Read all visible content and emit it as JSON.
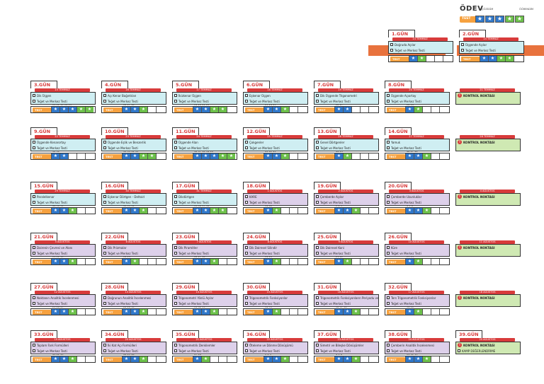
{
  "legend": {
    "title": "ÖDEV",
    "caption1": "ÇÖZDÜM",
    "caption2": "ÖĞRENDİM",
    "test": "TEST"
  },
  "test_label": "TEST",
  "colors": {
    "red": "#d83b3b",
    "orange": "#f6a13f",
    "blue": "#2f77c9",
    "green": "#6cc04a",
    "cyan": "#cfeef2",
    "purple": "#ddd0ea",
    "lime": "#cfe9b3"
  },
  "days": [
    {
      "day": "1.GÜN",
      "date": "13 TEMMUZ",
      "items": [
        "Doğruda Açılar",
        "Teğet ve Merkez Testi"
      ],
      "theme": "cyan",
      "nums": "",
      "marks": [
        "blue",
        "green",
        "white",
        "white",
        "white"
      ]
    },
    {
      "day": "2.GÜN",
      "date": "14 TEMMUZ",
      "items": [
        "Üçgende Açılar",
        "Teğet ve Merkez Testi"
      ],
      "theme": "cyan",
      "nums": "",
      "marks": [
        "blue",
        "blue",
        "green",
        "green",
        "white"
      ]
    },
    {
      "day": "3.GÜN",
      "date": "15 TEMMUZ",
      "items": [
        "Dik Üçgen",
        "Teğet ve Merkez Testi"
      ],
      "theme": "cyan",
      "nums": "11 12 13 14 15",
      "marks": [
        "blue",
        "blue",
        "blue",
        "green",
        "green"
      ]
    },
    {
      "day": "4.GÜN",
      "date": "16 TEMMUZ",
      "items": [
        "Açı Kenar Bağıntıları",
        "Teğet ve Merkez Testi"
      ],
      "theme": "cyan",
      "nums": "16 17 18",
      "marks": [
        "blue",
        "blue",
        "green",
        "white",
        "white"
      ]
    },
    {
      "day": "5.GÜN",
      "date": "17 TEMMUZ",
      "items": [
        "İkizkenar Üçgen",
        "Teğet ve Merkez Testi"
      ],
      "theme": "cyan",
      "nums": "19 20 21 22",
      "marks": [
        "blue",
        "blue",
        "green",
        "green",
        "white"
      ]
    },
    {
      "day": "6.GÜN",
      "date": "18 TEMMUZ",
      "items": [
        "Eşkenar Üçgen",
        "Teğet ve Merkez Testi"
      ],
      "theme": "cyan",
      "nums": "23 24 25",
      "marks": [
        "blue",
        "blue",
        "green",
        "white",
        "white"
      ]
    },
    {
      "day": "7.GÜN",
      "date": "19 TEMMUZ",
      "items": [
        "Dik Üçgende Trigonometri",
        "Teğet ve Merkez Testi"
      ],
      "theme": "cyan",
      "nums": "26 27",
      "marks": [
        "blue",
        "blue",
        "white",
        "white",
        "white"
      ]
    },
    {
      "day": "8.GÜN",
      "date": "20 TEMMUZ",
      "items": [
        "Üçgende Açıortay",
        "Teğet ve Merkez Testi"
      ],
      "theme": "cyan",
      "nums": "28 29",
      "marks": [
        "blue",
        "green",
        "white",
        "white",
        "white"
      ]
    },
    {
      "day": "",
      "date": "21 TEMMUZ",
      "items": [
        "KONTROL NOKTASI"
      ],
      "theme": "lime",
      "checkpoint": true
    },
    {
      "day": "9.GÜN",
      "date": "22 TEMMUZ",
      "items": [
        "Üçgende Kenarortay",
        "Teğet ve Merkez Testi"
      ],
      "theme": "cyan",
      "nums": "30 31",
      "marks": [
        "blue",
        "blue",
        "white",
        "white",
        "white"
      ]
    },
    {
      "day": "10.GÜN",
      "date": "23 TEMMUZ",
      "items": [
        "Üçgende Eşlik ve Benzerlik",
        "Teğet ve Merkez Testi"
      ],
      "theme": "cyan",
      "nums": "32 33 34 35",
      "marks": [
        "blue",
        "blue",
        "green",
        "green",
        "white"
      ]
    },
    {
      "day": "11.GÜN",
      "date": "24 TEMMUZ",
      "items": [
        "Üçgende Alan",
        "Teğet ve Merkez Testi"
      ],
      "theme": "cyan",
      "nums": "36 37 38 39 40",
      "marks": [
        "blue",
        "blue",
        "blue",
        "green",
        "green"
      ]
    },
    {
      "day": "12.GÜN",
      "date": "25 TEMMUZ",
      "items": [
        "Çokgenler",
        "Teğet ve Merkez Testi"
      ],
      "theme": "cyan",
      "nums": "41 42 43",
      "marks": [
        "blue",
        "blue",
        "green",
        "white",
        "white"
      ]
    },
    {
      "day": "13.GÜN",
      "date": "26 TEMMUZ",
      "items": [
        "Genel Dörtgenler",
        "Teğet ve Merkez Testi"
      ],
      "theme": "cyan",
      "nums": "44 45",
      "marks": [
        "blue",
        "green",
        "white",
        "white",
        "white"
      ]
    },
    {
      "day": "14.GÜN",
      "date": "27 TEMMUZ",
      "items": [
        "Yamuk",
        "Teğet ve Merkez Testi"
      ],
      "theme": "cyan",
      "nums": "46 47 48",
      "marks": [
        "blue",
        "blue",
        "green",
        "white",
        "white"
      ]
    },
    {
      "day": "",
      "date": "28 TEMMUZ",
      "items": [
        "KONTROL NOKTASI"
      ],
      "theme": "lime",
      "checkpoint": true
    },
    {
      "day": "15.GÜN",
      "date": "29 TEMMUZ",
      "items": [
        "Paralelkenar",
        "Teğet ve Merkez Testi"
      ],
      "theme": "cyan",
      "nums": "49 50 51",
      "marks": [
        "blue",
        "blue",
        "green",
        "white",
        "white"
      ]
    },
    {
      "day": "16.GÜN",
      "date": "30 TEMMUZ",
      "items": [
        "Eşkenar Dörtgen - Deltoid",
        "Teğet ve Merkez Testi"
      ],
      "theme": "cyan",
      "nums": "52 53 54",
      "marks": [
        "blue",
        "blue",
        "green",
        "white",
        "white"
      ]
    },
    {
      "day": "17.GÜN",
      "date": "31 TEMMUZ",
      "items": [
        "Dikdörtgen",
        "Teğet ve Merkez Testi"
      ],
      "theme": "cyan",
      "nums": "55 56 57 58",
      "marks": [
        "blue",
        "blue",
        "green",
        "green",
        "white"
      ]
    },
    {
      "day": "18.GÜN",
      "date": "1 AĞUSTOS",
      "items": [
        "KARE",
        "Teğet ve Merkez Testi"
      ],
      "theme": "purple",
      "nums": "59 60",
      "marks": [
        "blue",
        "green",
        "white",
        "white",
        "white"
      ]
    },
    {
      "day": "19.GÜN",
      "date": "2 AĞUSTOS",
      "items": [
        "Çemberde Açılar",
        "Teğet ve Merkez Testi"
      ],
      "theme": "purple",
      "nums": "1 2 3",
      "marks": [
        "blue",
        "blue",
        "green",
        "white",
        "white"
      ]
    },
    {
      "day": "20.GÜN",
      "date": "3 AĞUSTOS",
      "items": [
        "Çemberde Uzunluklar",
        "Teğet ve Merkez Testi"
      ],
      "theme": "purple",
      "nums": "4 5 6",
      "marks": [
        "blue",
        "blue",
        "green",
        "white",
        "white"
      ]
    },
    {
      "day": "",
      "date": "4 AĞUSTOS",
      "items": [
        "KONTROL NOKTASI"
      ],
      "theme": "lime",
      "checkpoint": true
    },
    {
      "day": "21.GÜN",
      "date": "5 AĞUSTOS",
      "items": [
        "Dairenin Çevresi ve Alanı",
        "Teğet ve Merkez Testi"
      ],
      "theme": "purple",
      "nums": "11 12 13",
      "marks": [
        "blue",
        "blue",
        "green",
        "white",
        "white"
      ]
    },
    {
      "day": "22.GÜN",
      "date": "6 AĞUSTOS",
      "items": [
        "Dik Prizmalar",
        "Teğet ve Merkez Testi"
      ],
      "theme": "purple",
      "nums": "14 15",
      "marks": [
        "blue",
        "green",
        "white",
        "white",
        "white"
      ]
    },
    {
      "day": "23.GÜN",
      "date": "7 AĞUSTOS",
      "items": [
        "Dik Piramitler",
        "Teğet ve Merkez Testi"
      ],
      "theme": "purple",
      "nums": "16 17 18",
      "marks": [
        "blue",
        "blue",
        "green",
        "white",
        "white"
      ]
    },
    {
      "day": "24.GÜN",
      "date": "8 AĞUSTOS",
      "items": [
        "Dik Dairesel Silindir",
        "Teğet ve Merkez Testi"
      ],
      "theme": "purple",
      "nums": "19 20",
      "marks": [
        "blue",
        "green",
        "white",
        "white",
        "white"
      ]
    },
    {
      "day": "25.GÜN",
      "date": "9 AĞUSTOS",
      "items": [
        "Dik Dairesel Koni",
        "Teğet ve Merkez Testi"
      ],
      "theme": "purple",
      "nums": "21 22",
      "marks": [
        "blue",
        "green",
        "white",
        "white",
        "white"
      ]
    },
    {
      "day": "26.GÜN",
      "date": "10 AĞUSTOS",
      "items": [
        "Küre",
        "Teğet ve Merkez Testi"
      ],
      "theme": "purple",
      "nums": "23 24",
      "marks": [
        "blue",
        "green",
        "white",
        "white",
        "white"
      ]
    },
    {
      "day": "",
      "date": "11 AĞUSTOS",
      "items": [
        "KONTROL NOKTASI"
      ],
      "theme": "lime",
      "checkpoint": true
    },
    {
      "day": "27.GÜN",
      "date": "12 AĞUSTOS",
      "items": [
        "Noktanın Analitik İncelenmesi",
        "Teğet ve Merkez Testi"
      ],
      "theme": "purple",
      "nums": "25 26 27",
      "marks": [
        "blue",
        "blue",
        "green",
        "white",
        "white"
      ]
    },
    {
      "day": "28.GÜN",
      "date": "13 AĞUSTOS",
      "items": [
        "Doğrunun Analitik İncelenmesi",
        "Teğet ve Merkez Testi"
      ],
      "theme": "purple",
      "nums": "28 29 30",
      "marks": [
        "blue",
        "blue",
        "green",
        "white",
        "white"
      ]
    },
    {
      "day": "29.GÜN",
      "date": "14 AĞUSTOS",
      "items": [
        "Trigonometri Yönlü Açılar",
        "Teğet ve Merkez Testi"
      ],
      "theme": "purple",
      "nums": "31 32 33",
      "marks": [
        "blue",
        "blue",
        "green",
        "white",
        "white"
      ]
    },
    {
      "day": "30.GÜN",
      "date": "15 AĞUSTOS",
      "items": [
        "Trigonometrik Fonksiyonlar",
        "Teğet ve Merkez Testi"
      ],
      "theme": "purple",
      "nums": "34 35",
      "marks": [
        "blue",
        "green",
        "white",
        "white",
        "white"
      ]
    },
    {
      "day": "31.GÜN",
      "date": "16 AĞUSTOS",
      "items": [
        "Trigonometrik Fonksiyonların Periyodu ve Grafikleri",
        "Teğet ve Merkez Testi"
      ],
      "theme": "purple",
      "nums": "36 37 38",
      "marks": [
        "blue",
        "blue",
        "green",
        "white",
        "white"
      ]
    },
    {
      "day": "32.GÜN",
      "date": "17 AĞUSTOS",
      "items": [
        "Ters Trigonometrik Fonksiyonlar",
        "Teğet ve Merkez Testi"
      ],
      "theme": "purple",
      "nums": "39 40",
      "marks": [
        "blue",
        "green",
        "white",
        "white",
        "white"
      ]
    },
    {
      "day": "",
      "date": "18 AĞUSTOS",
      "items": [
        "KONTROL NOKTASI"
      ],
      "theme": "lime",
      "checkpoint": true
    },
    {
      "day": "33.GÜN",
      "date": "19 AĞUSTOS",
      "items": [
        "Toplam Fark Formülleri",
        "Teğet ve Merkez Testi"
      ],
      "theme": "purple",
      "nums": "41 42 43",
      "marks": [
        "blue",
        "blue",
        "green",
        "white",
        "white"
      ]
    },
    {
      "day": "34.GÜN",
      "date": "20 AĞUSTOS",
      "items": [
        "İki Kat Açı Formülleri",
        "Teğet ve Merkez Testi"
      ],
      "theme": "purple",
      "nums": "44 45 46",
      "marks": [
        "blue",
        "blue",
        "green",
        "white",
        "white"
      ]
    },
    {
      "day": "35.GÜN",
      "date": "21 AĞUSTOS",
      "items": [
        "Trigonometrik Denklemler",
        "Teğet ve Merkez Testi"
      ],
      "theme": "purple",
      "nums": "47 48",
      "marks": [
        "blue",
        "green",
        "white",
        "white",
        "white"
      ]
    },
    {
      "day": "36.GÜN",
      "date": "22 AĞUSTOS",
      "items": [
        "Öteleme ve Dönme Dönüşümü",
        "Teğet ve Merkez Testi"
      ],
      "theme": "purple",
      "nums": "1 2 3",
      "marks": [
        "blue",
        "blue",
        "green",
        "white",
        "white"
      ]
    },
    {
      "day": "37.GÜN",
      "date": "23 AĞUSTOS",
      "items": [
        "Simetri ve Bileşke Dönüşümler",
        "Teğet ve Merkez Testi"
      ],
      "theme": "purple",
      "nums": "4 5 6",
      "marks": [
        "blue",
        "blue",
        "green",
        "white",
        "white"
      ]
    },
    {
      "day": "38.GÜN",
      "date": "24 AĞUSTOS",
      "items": [
        "Çemberin Analitik İncelenmesi",
        "Teğet ve Merkez Testi"
      ],
      "theme": "purple",
      "nums": "11 12 13",
      "marks": [
        "blue",
        "blue",
        "green",
        "white",
        "white"
      ]
    },
    {
      "day": "39.GÜN",
      "date": "25 AĞUSTOS",
      "items": [
        "KONTROL NOKTASI",
        "KAMP DEĞERLENDİRME"
      ],
      "theme": "lime",
      "checkpoint": true,
      "final": true
    }
  ]
}
